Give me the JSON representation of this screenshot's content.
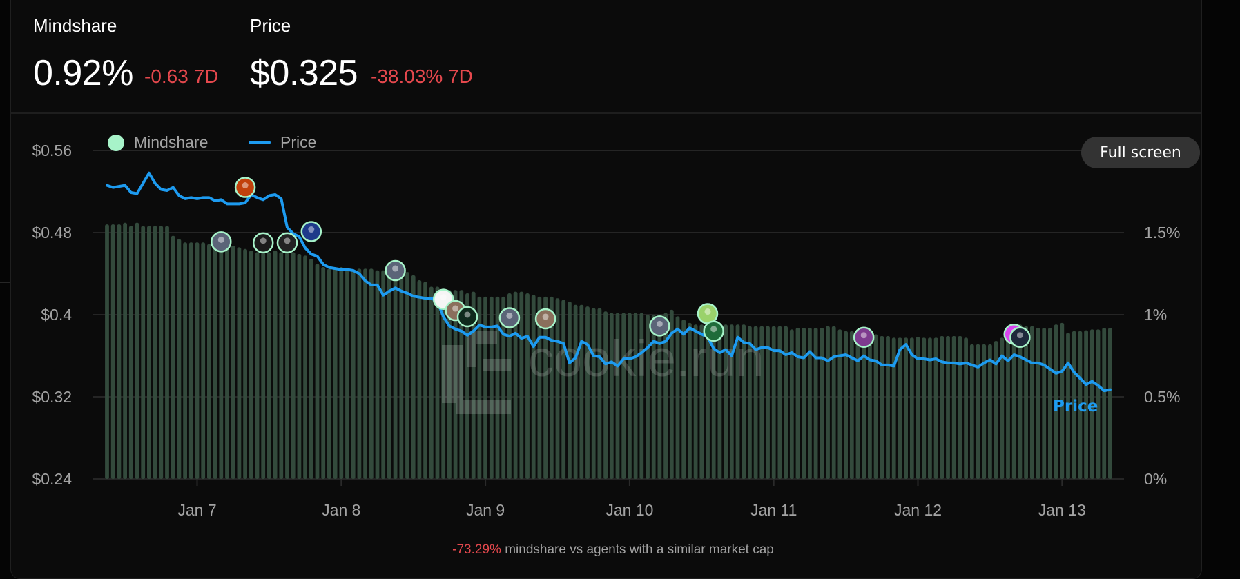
{
  "header": {
    "mindshare": {
      "label": "Mindshare",
      "value": "0.92%",
      "change": "-0.63 7D"
    },
    "price": {
      "label": "Price",
      "value": "$0.325",
      "change": "-38.03% 7D"
    }
  },
  "buttons": {
    "full_screen": "Full screen"
  },
  "footnote": {
    "delta": "-73.29%",
    "text": " mindshare vs agents with a similar market cap"
  },
  "watermark": "cookie.run",
  "colors": {
    "mindshare_bar": "#334a3c",
    "mindshare_legend": "#a7f3c9",
    "price_line": "#1d9bf0",
    "negative": "#e5484d",
    "marker_border": "#a7f3c9"
  },
  "chart_data": {
    "type": "bar+line",
    "interval": "hourly",
    "legend": {
      "position": "top-left",
      "entries": [
        "Mindshare",
        "Price"
      ]
    },
    "grid": true,
    "x_ticks": [
      "Jan 7",
      "Jan 8",
      "Jan 9",
      "Jan 10",
      "Jan 11",
      "Jan 12",
      "Jan 13"
    ],
    "y_left": {
      "ticks": [
        "$0.56",
        "$0.48",
        "$0.4",
        "$0.32",
        "$0.24"
      ],
      "tick_values": [
        0.56,
        0.48,
        0.4,
        0.32,
        0.24
      ],
      "range": [
        0.24,
        0.56
      ]
    },
    "y_right": {
      "ticks": [
        "1.5%",
        "1%",
        "0.5%",
        "0%"
      ],
      "tick_values": [
        1.5,
        1.0,
        0.5,
        0
      ],
      "range": [
        0,
        2
      ]
    },
    "line_label": "Price",
    "series": [
      {
        "name": "Mindshare",
        "type": "bar",
        "axis": "right",
        "values": [
          1.55,
          1.55,
          1.55,
          1.56,
          1.54,
          1.56,
          1.54,
          1.54,
          1.54,
          1.54,
          1.54,
          1.48,
          1.46,
          1.44,
          1.44,
          1.44,
          1.44,
          1.43,
          1.43,
          1.43,
          1.42,
          1.42,
          1.41,
          1.4,
          1.39,
          1.38,
          1.38,
          1.38,
          1.39,
          1.38,
          1.38,
          1.38,
          1.37,
          1.36,
          1.34,
          1.31,
          1.29,
          1.28,
          1.28,
          1.29,
          1.28,
          1.27,
          1.28,
          1.28,
          1.28,
          1.27,
          1.27,
          1.27,
          1.27,
          1.27,
          1.26,
          1.24,
          1.21,
          1.2,
          1.17,
          1.17,
          1.16,
          1.15,
          1.15,
          1.15,
          1.13,
          1.14,
          1.11,
          1.11,
          1.11,
          1.11,
          1.11,
          1.13,
          1.14,
          1.14,
          1.13,
          1.12,
          1.11,
          1.11,
          1.11,
          1.1,
          1.09,
          1.08,
          1.06,
          1.06,
          1.05,
          1.04,
          1.04,
          1.02,
          1.01,
          1.01,
          1.01,
          1.01,
          1.01,
          1.01,
          1.0,
          1.0,
          1.0,
          1.01,
          1.03,
          0.99,
          0.97,
          0.95,
          0.94,
          0.94,
          0.94,
          0.94,
          0.94,
          0.94,
          0.94,
          0.94,
          0.94,
          0.93,
          0.93,
          0.93,
          0.93,
          0.93,
          0.93,
          0.93,
          0.91,
          0.92,
          0.92,
          0.92,
          0.92,
          0.92,
          0.93,
          0.93,
          0.91,
          0.9,
          0.9,
          0.89,
          0.89,
          0.88,
          0.88,
          0.87,
          0.87,
          0.86,
          0.86,
          0.86,
          0.86,
          0.865,
          0.86,
          0.86,
          0.86,
          0.87,
          0.87,
          0.87,
          0.87,
          0.86,
          0.82,
          0.82,
          0.82,
          0.82,
          0.84,
          0.86,
          0.88,
          0.91,
          0.94,
          0.93,
          0.93,
          0.92,
          0.92,
          0.92,
          0.94,
          0.95,
          0.89,
          0.9,
          0.9,
          0.905,
          0.91,
          0.91,
          0.92,
          0.92
        ]
      },
      {
        "name": "Price",
        "type": "line",
        "axis": "left",
        "values": [
          0.526,
          0.524,
          0.525,
          0.526,
          0.519,
          0.518,
          0.528,
          0.538,
          0.528,
          0.522,
          0.521,
          0.524,
          0.516,
          0.513,
          0.514,
          0.513,
          0.514,
          0.514,
          0.511,
          0.512,
          0.508,
          0.508,
          0.508,
          0.509,
          0.517,
          0.514,
          0.512,
          0.516,
          0.517,
          0.513,
          0.485,
          0.479,
          0.476,
          0.465,
          0.459,
          0.457,
          0.449,
          0.446,
          0.445,
          0.444,
          0.444,
          0.443,
          0.44,
          0.433,
          0.429,
          0.429,
          0.419,
          0.423,
          0.426,
          0.423,
          0.421,
          0.418,
          0.417,
          0.416,
          0.416,
          0.413,
          0.398,
          0.389,
          0.386,
          0.384,
          0.38,
          0.384,
          0.39,
          0.388,
          0.388,
          0.389,
          0.381,
          0.379,
          0.382,
          0.377,
          0.379,
          0.369,
          0.378,
          0.378,
          0.375,
          0.374,
          0.372,
          0.353,
          0.358,
          0.374,
          0.371,
          0.36,
          0.359,
          0.352,
          0.354,
          0.35,
          0.357,
          0.357,
          0.359,
          0.363,
          0.368,
          0.374,
          0.372,
          0.374,
          0.382,
          0.386,
          0.381,
          0.387,
          0.384,
          0.381,
          0.378,
          0.367,
          0.363,
          0.366,
          0.36,
          0.378,
          0.373,
          0.372,
          0.366,
          0.368,
          0.368,
          0.365,
          0.365,
          0.361,
          0.363,
          0.359,
          0.358,
          0.364,
          0.358,
          0.358,
          0.355,
          0.359,
          0.36,
          0.361,
          0.358,
          0.355,
          0.36,
          0.356,
          0.355,
          0.351,
          0.351,
          0.35,
          0.366,
          0.371,
          0.361,
          0.357,
          0.357,
          0.356,
          0.357,
          0.354,
          0.353,
          0.353,
          0.352,
          0.353,
          0.351,
          0.349,
          0.353,
          0.356,
          0.352,
          0.36,
          0.355,
          0.361,
          0.359,
          0.356,
          0.353,
          0.353,
          0.351,
          0.347,
          0.343,
          0.345,
          0.353,
          0.344,
          0.338,
          0.332,
          0.335,
          0.331,
          0.326,
          0.327
        ]
      }
    ],
    "markers": [
      {
        "hour": 23,
        "price": 0.524,
        "color": "#c2410c"
      },
      {
        "hour": 19,
        "price": 0.471,
        "color": "#5b6478"
      },
      {
        "hour": 26,
        "price": 0.47,
        "color": "#1a1a1a"
      },
      {
        "hour": 30,
        "price": 0.47,
        "color": "#222222"
      },
      {
        "hour": 34,
        "price": 0.481,
        "color": "#1e3a8a"
      },
      {
        "hour": 48,
        "price": 0.443,
        "color": "#5b6478"
      },
      {
        "hour": 56,
        "price": 0.415,
        "color": "#f5f5f5"
      },
      {
        "hour": 58,
        "price": 0.404,
        "color": "#8a6f5c"
      },
      {
        "hour": 60,
        "price": 0.398,
        "color": "#0f2a1c"
      },
      {
        "hour": 67,
        "price": 0.397,
        "color": "#5b6478"
      },
      {
        "hour": 73,
        "price": 0.396,
        "color": "#8a6f5c"
      },
      {
        "hour": 92,
        "price": 0.389,
        "color": "#5b6478"
      },
      {
        "hour": 100,
        "price": 0.401,
        "color": "#9ad26b"
      },
      {
        "hour": 101,
        "price": 0.384,
        "color": "#1f6b3a"
      },
      {
        "hour": 126,
        "price": 0.378,
        "color": "#7e3b8f"
      },
      {
        "hour": 151,
        "price": 0.381,
        "color": "#d946ef"
      },
      {
        "hour": 152,
        "price": 0.378,
        "color": "#1e293b"
      }
    ]
  }
}
